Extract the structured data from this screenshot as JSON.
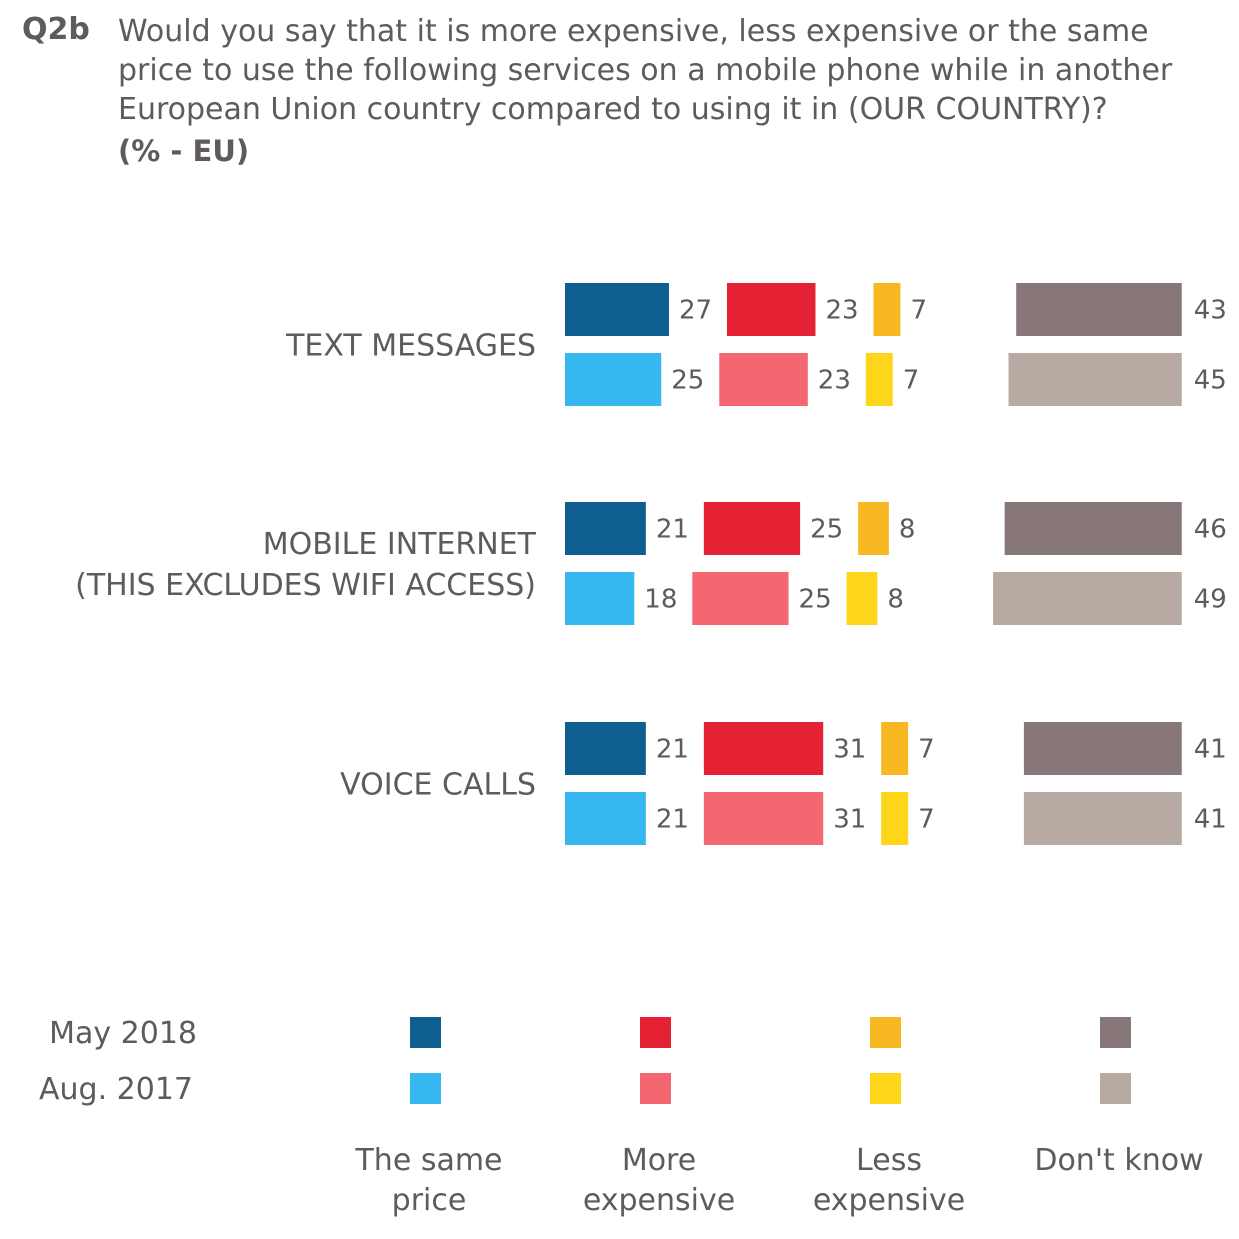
{
  "question": {
    "code": "Q2b",
    "text": "Would you say that it is more expensive, less expensive or the same price to use the following services on a mobile phone while in another European Union country compared to using it in (OUR COUNTRY)?",
    "subtitle": "(% - EU)"
  },
  "chart_data": {
    "type": "bar",
    "orientation": "horizontal",
    "layout": "stacked-by-answer-with-gaps",
    "categories": [
      {
        "lines": [
          "TEXT MESSAGES"
        ]
      },
      {
        "lines": [
          "MOBILE INTERNET",
          "(THIS EXCLUDES WIFI ACCESS)"
        ]
      },
      {
        "lines": [
          "VOICE CALLS"
        ]
      }
    ],
    "waves": [
      "May 2018",
      "Aug. 2017"
    ],
    "answers": [
      {
        "lines": [
          "The same",
          "price"
        ],
        "colors": [
          "#0e5f8f",
          "#36b7ef"
        ]
      },
      {
        "lines": [
          "More",
          "expensive"
        ],
        "colors": [
          "#e42233",
          "#f46670"
        ]
      },
      {
        "lines": [
          "Less",
          "expensive"
        ],
        "colors": [
          "#f7b822",
          "#fdd51a"
        ]
      },
      {
        "lines": [
          "Don't know"
        ],
        "colors": [
          "#877779",
          "#b7aaa2"
        ]
      }
    ],
    "values": [
      [
        [
          27,
          23,
          7,
          43
        ],
        [
          25,
          23,
          7,
          45
        ]
      ],
      [
        [
          21,
          25,
          8,
          46
        ],
        [
          18,
          25,
          8,
          49
        ]
      ],
      [
        [
          21,
          31,
          7,
          41
        ],
        [
          21,
          31,
          7,
          41
        ]
      ]
    ]
  }
}
